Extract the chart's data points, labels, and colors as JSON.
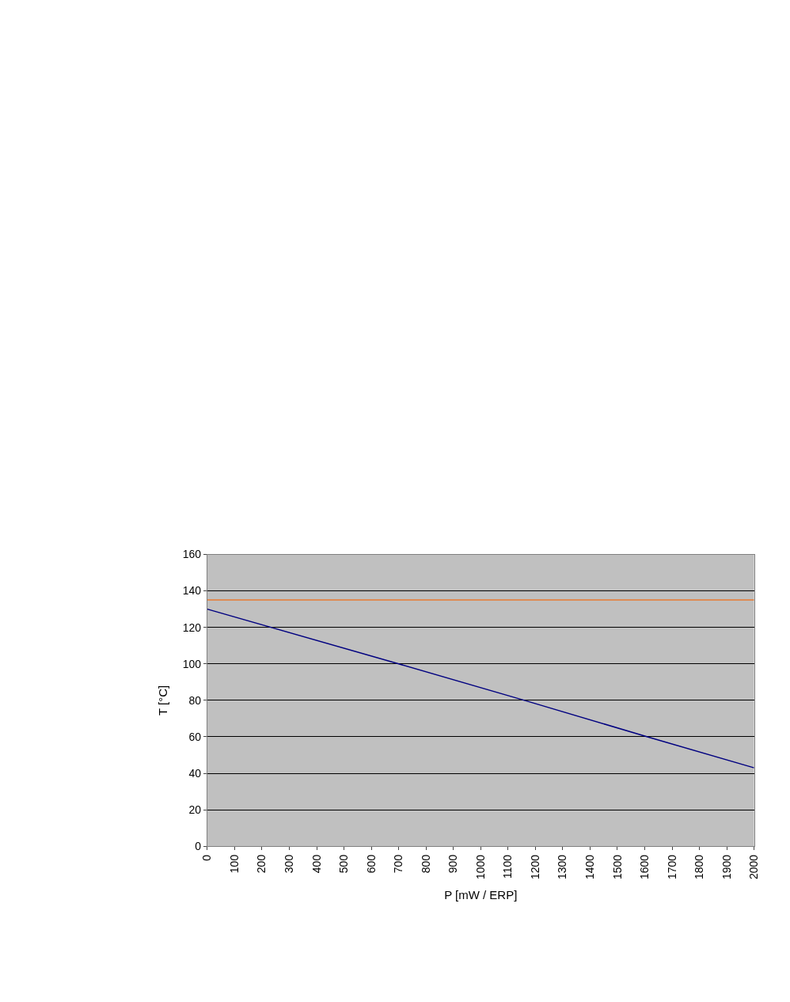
{
  "chart_data": {
    "type": "line",
    "xlabel": "P [mW / ERP]",
    "ylabel": "T [°C]",
    "series": [
      {
        "color": "#000080",
        "x": [
          0,
          700,
          1160,
          1610,
          2000
        ],
        "values": [
          130,
          100,
          80,
          60,
          43
        ]
      },
      {
        "color": "#e87a30",
        "x": [
          0,
          2000
        ],
        "values": [
          135,
          135
        ]
      }
    ],
    "xlim": [
      0,
      2000
    ],
    "xticks": [
      0,
      100,
      200,
      300,
      400,
      500,
      600,
      700,
      800,
      900,
      1000,
      1100,
      1200,
      1300,
      1400,
      1500,
      1600,
      1700,
      1800,
      1900,
      2000
    ],
    "ylim": [
      0,
      160
    ],
    "yticks": [
      0,
      20,
      40,
      60,
      80,
      100,
      120,
      140,
      160
    ],
    "grid": "y",
    "marker": "none",
    "line_style": "solid"
  }
}
